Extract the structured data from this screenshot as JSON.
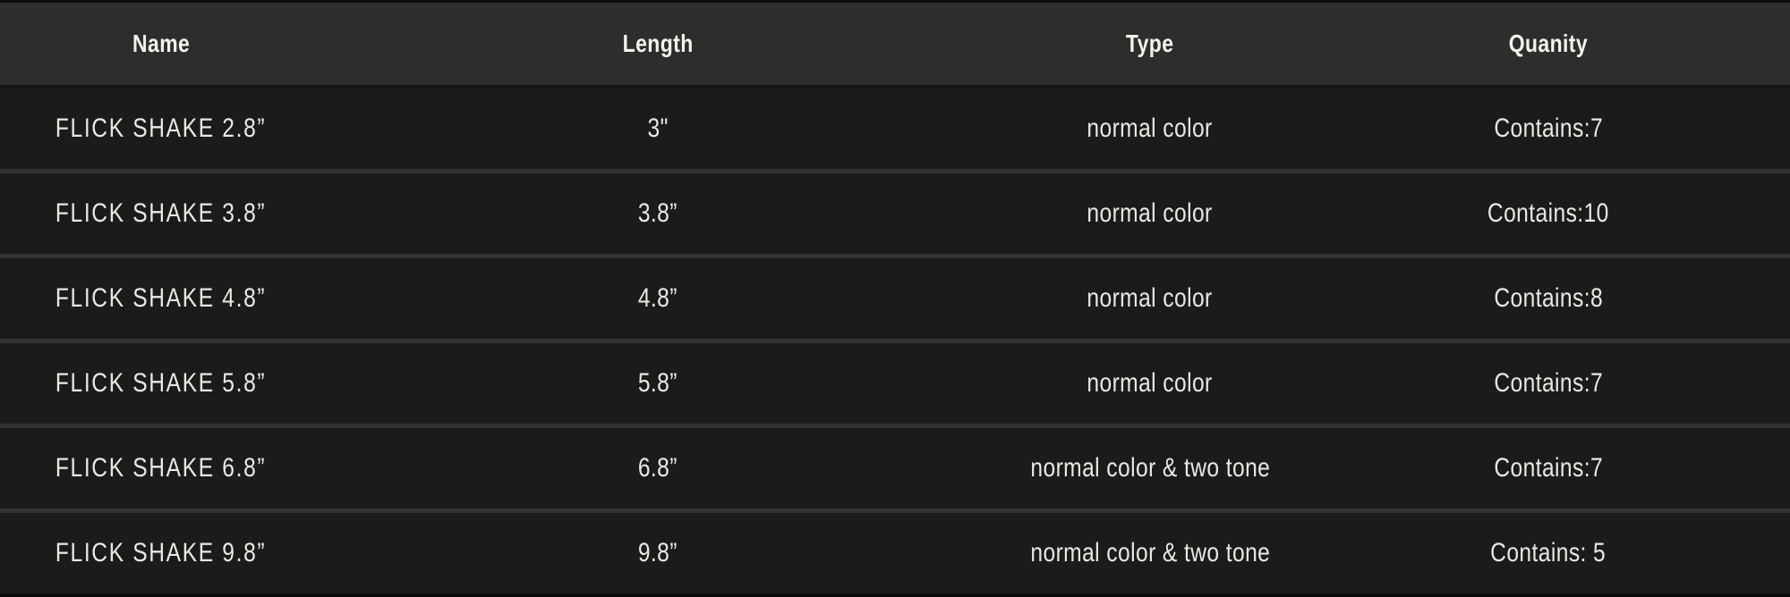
{
  "table": {
    "columns": [
      {
        "id": "name",
        "label": "Name"
      },
      {
        "id": "length",
        "label": "Length"
      },
      {
        "id": "type",
        "label": "Type"
      },
      {
        "id": "quantity",
        "label": "Quanity"
      }
    ],
    "rows": [
      {
        "name": "FLICK SHAKE 2.8”",
        "length": "3\"",
        "type": "normal color",
        "quantity": "Contains:7"
      },
      {
        "name": "FLICK SHAKE 3.8”",
        "length": "3.8”",
        "type": "normal color",
        "quantity": "Contains:10"
      },
      {
        "name": "FLICK SHAKE 4.8”",
        "length": "4.8”",
        "type": "normal color",
        "quantity": "Contains:8"
      },
      {
        "name": "FLICK SHAKE 5.8”",
        "length": "5.8”",
        "type": "normal color",
        "quantity": "Contains:7"
      },
      {
        "name": "FLICK SHAKE 6.8”",
        "length": "6.8”",
        "type": "normal color & two tone",
        "quantity": "Contains:7"
      },
      {
        "name": "FLICK SHAKE 9.8”",
        "length": "9.8”",
        "type": "normal color & two tone",
        "quantity": "Contains: 5"
      }
    ]
  },
  "colors": {
    "header_background": "#2f2d2b",
    "row_background": "#1c1b1a",
    "row_separator": "#343230",
    "header_separator": "#151413",
    "page_edge": "#0c0c0c",
    "header_text": "#f4f2ef",
    "cell_text": "#eae8e5"
  },
  "chart_data": {
    "type": "table",
    "columns": [
      "Name",
      "Length",
      "Type",
      "Quanity"
    ],
    "rows": [
      [
        "FLICK SHAKE 2.8”",
        "3\"",
        "normal color",
        "Contains:7"
      ],
      [
        "FLICK SHAKE 3.8”",
        "3.8”",
        "normal color",
        "Contains:10"
      ],
      [
        "FLICK SHAKE 4.8”",
        "4.8”",
        "normal color",
        "Contains:8"
      ],
      [
        "FLICK SHAKE 5.8”",
        "5.8”",
        "normal color",
        "Contains:7"
      ],
      [
        "FLICK SHAKE 6.8”",
        "6.8”",
        "normal color & two tone",
        "Contains:7"
      ],
      [
        "FLICK SHAKE 9.8”",
        "9.8”",
        "normal color & two tone",
        "Contains: 5"
      ]
    ],
    "layout": {
      "theme": "dark",
      "header_row": true,
      "grid": "horizontal-separators"
    }
  }
}
